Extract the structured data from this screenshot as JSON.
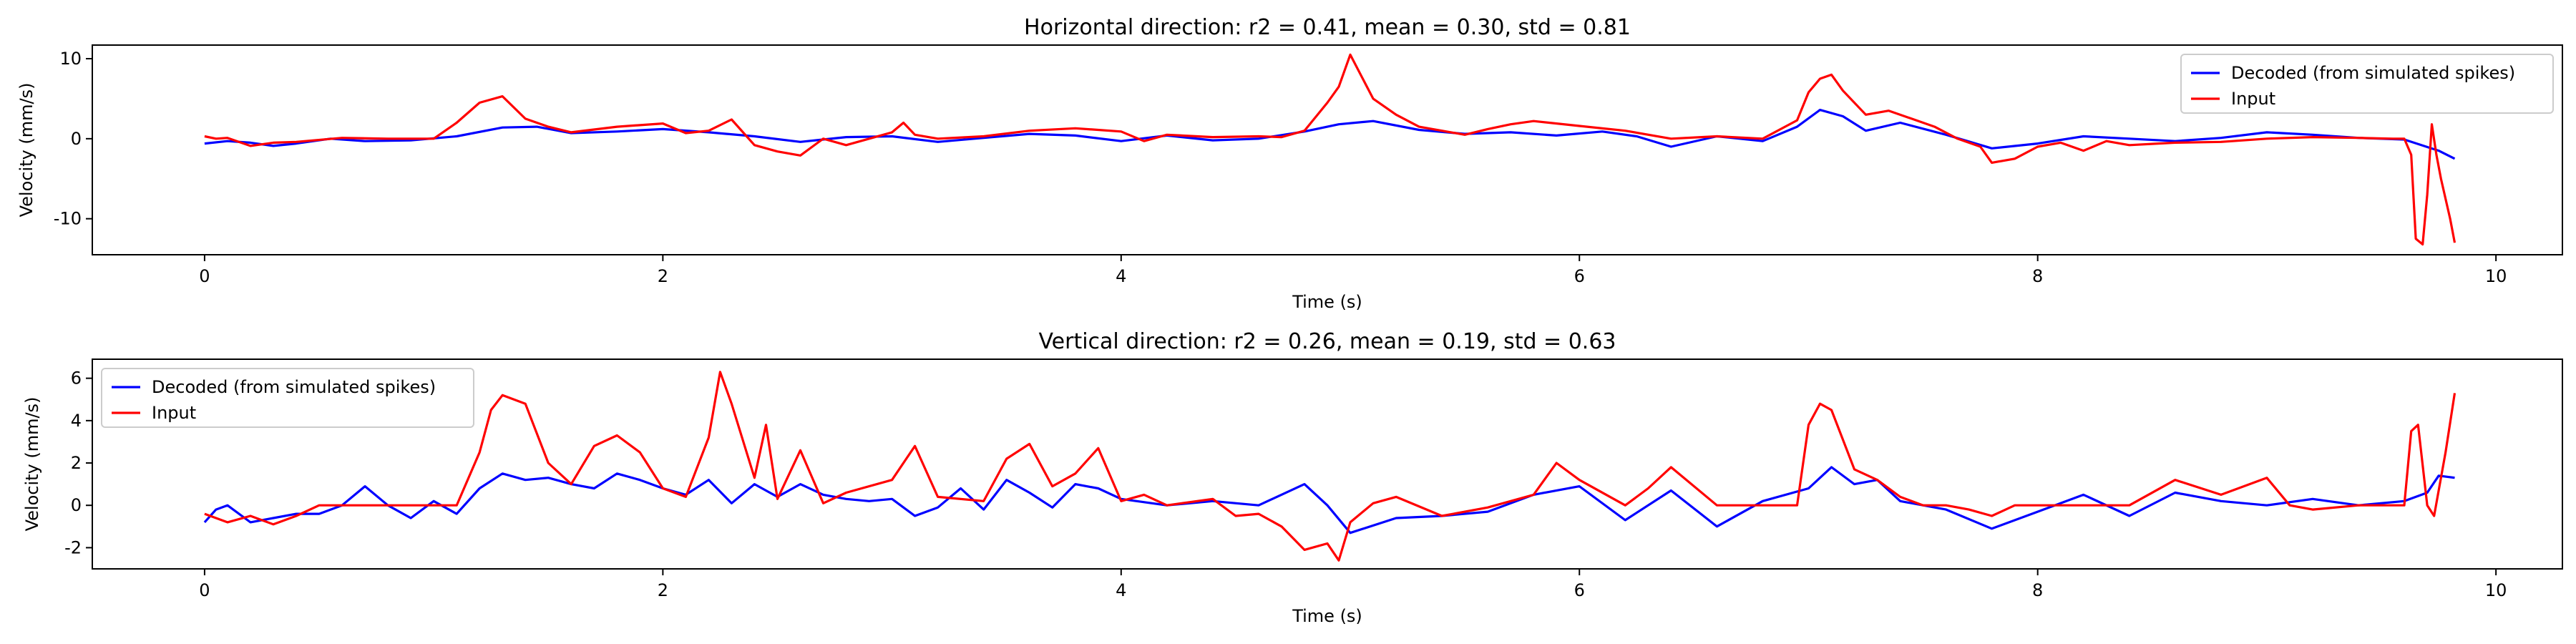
{
  "chart_data": [
    {
      "type": "line",
      "title": "Horizontal direction: r2 = 0.41, mean = 0.30, std = 0.81",
      "xlabel": "Time (s)",
      "ylabel": "Velocity (mm/s)",
      "xlim": [
        -0.49,
        10.29
      ],
      "ylim": [
        -14.5,
        11.7
      ],
      "xticks": [
        0,
        2,
        4,
        6,
        8,
        10
      ],
      "yticks": [
        -10,
        0,
        10
      ],
      "grid": false,
      "legend_position": "upper right",
      "series": [
        {
          "name": "Decoded (from simulated spikes)",
          "color": "#0000ff",
          "x": [
            0,
            0.1,
            0.2,
            0.3,
            0.4,
            0.55,
            0.7,
            0.9,
            1.1,
            1.3,
            1.45,
            1.6,
            1.8,
            2.0,
            2.2,
            2.4,
            2.6,
            2.8,
            3.0,
            3.2,
            3.4,
            3.6,
            3.8,
            4.0,
            4.2,
            4.4,
            4.6,
            4.8,
            4.95,
            5.1,
            5.3,
            5.5,
            5.7,
            5.9,
            6.1,
            6.25,
            6.4,
            6.6,
            6.8,
            6.95,
            7.05,
            7.15,
            7.25,
            7.4,
            7.6,
            7.8,
            8.0,
            8.2,
            8.4,
            8.6,
            8.8,
            9.0,
            9.2,
            9.4,
            9.6,
            9.75,
            9.82
          ],
          "values": [
            -0.6,
            -0.3,
            -0.5,
            -0.9,
            -0.6,
            0.0,
            -0.3,
            -0.2,
            0.3,
            1.4,
            1.5,
            0.7,
            0.9,
            1.2,
            0.8,
            0.3,
            -0.4,
            0.2,
            0.3,
            -0.4,
            0.1,
            0.6,
            0.4,
            -0.3,
            0.4,
            -0.2,
            0.0,
            0.9,
            1.8,
            2.2,
            1.1,
            0.6,
            0.8,
            0.4,
            0.9,
            0.3,
            -1.0,
            0.3,
            -0.3,
            1.5,
            3.6,
            2.8,
            1.0,
            2.0,
            0.5,
            -1.2,
            -0.6,
            0.3,
            0.0,
            -0.3,
            0.1,
            0.8,
            0.5,
            0.1,
            -0.1,
            -1.5,
            -2.5
          ]
        },
        {
          "name": "Input",
          "color": "#ff0000",
          "x": [
            0,
            0.05,
            0.1,
            0.2,
            0.3,
            0.4,
            0.6,
            0.8,
            1.0,
            1.1,
            1.2,
            1.3,
            1.4,
            1.5,
            1.6,
            1.8,
            2.0,
            2.1,
            2.2,
            2.3,
            2.4,
            2.5,
            2.6,
            2.7,
            2.8,
            3.0,
            3.05,
            3.1,
            3.2,
            3.4,
            3.6,
            3.8,
            4.0,
            4.1,
            4.2,
            4.4,
            4.6,
            4.7,
            4.8,
            4.9,
            4.95,
            5.0,
            5.1,
            5.2,
            5.3,
            5.5,
            5.6,
            5.7,
            5.8,
            6.0,
            6.2,
            6.4,
            6.6,
            6.8,
            6.95,
            7.0,
            7.05,
            7.1,
            7.15,
            7.25,
            7.35,
            7.45,
            7.55,
            7.65,
            7.75,
            7.8,
            7.9,
            8.0,
            8.1,
            8.2,
            8.3,
            8.4,
            8.6,
            8.8,
            9.0,
            9.2,
            9.4,
            9.55,
            9.6,
            9.63,
            9.65,
            9.68,
            9.7,
            9.72,
            9.74,
            9.76,
            9.8,
            9.82
          ],
          "values": [
            0.3,
            0.0,
            0.1,
            -0.9,
            -0.5,
            -0.4,
            0.1,
            0.0,
            0.0,
            2.0,
            4.5,
            5.3,
            2.5,
            1.5,
            0.8,
            1.5,
            1.9,
            0.7,
            1.0,
            2.4,
            -0.8,
            -1.6,
            -2.1,
            0.0,
            -0.8,
            0.8,
            2.0,
            0.5,
            0.0,
            0.3,
            1.0,
            1.3,
            0.9,
            -0.3,
            0.5,
            0.2,
            0.3,
            0.2,
            1.0,
            4.5,
            6.5,
            10.5,
            5.0,
            3.0,
            1.5,
            0.5,
            1.2,
            1.8,
            2.2,
            1.6,
            1.0,
            0.0,
            0.3,
            0.0,
            2.3,
            5.8,
            7.5,
            8.0,
            6.0,
            3.0,
            3.5,
            2.5,
            1.5,
            0.0,
            -1.0,
            -3.0,
            -2.5,
            -1.0,
            -0.5,
            -1.5,
            -0.3,
            -0.8,
            -0.5,
            -0.4,
            0.0,
            0.2,
            0.1,
            0.0,
            0.0,
            -2.0,
            -12.5,
            -13.2,
            -7.0,
            1.8,
            -2.0,
            -5.0,
            -10.0,
            -13.0
          ]
        }
      ]
    },
    {
      "type": "line",
      "title": "Vertical direction: r2 = 0.26, mean = 0.19, std = 0.63",
      "xlabel": "Time (s)",
      "ylabel": "Velocity (mm/s)",
      "xlim": [
        -0.49,
        10.29
      ],
      "ylim": [
        -3.0,
        6.9
      ],
      "xticks": [
        0,
        2,
        4,
        6,
        8,
        10
      ],
      "yticks": [
        -2,
        0,
        2,
        4,
        6
      ],
      "grid": false,
      "legend_position": "upper left",
      "series": [
        {
          "name": "Decoded (from simulated spikes)",
          "color": "#0000ff",
          "x": [
            0,
            0.05,
            0.1,
            0.2,
            0.3,
            0.4,
            0.5,
            0.6,
            0.7,
            0.8,
            0.9,
            1.0,
            1.1,
            1.2,
            1.3,
            1.4,
            1.5,
            1.6,
            1.7,
            1.8,
            1.9,
            2.0,
            2.1,
            2.2,
            2.3,
            2.4,
            2.5,
            2.6,
            2.7,
            2.8,
            2.9,
            3.0,
            3.1,
            3.2,
            3.3,
            3.4,
            3.5,
            3.6,
            3.7,
            3.8,
            3.9,
            4.0,
            4.2,
            4.4,
            4.6,
            4.8,
            4.9,
            5.0,
            5.2,
            5.4,
            5.6,
            5.8,
            6.0,
            6.2,
            6.4,
            6.6,
            6.8,
            7.0,
            7.1,
            7.2,
            7.3,
            7.4,
            7.6,
            7.8,
            8.0,
            8.2,
            8.4,
            8.6,
            8.8,
            9.0,
            9.2,
            9.4,
            9.6,
            9.7,
            9.75,
            9.82
          ],
          "values": [
            -0.8,
            -0.2,
            0.0,
            -0.8,
            -0.6,
            -0.4,
            -0.4,
            0.0,
            0.9,
            0.0,
            -0.6,
            0.2,
            -0.4,
            0.8,
            1.5,
            1.2,
            1.3,
            1.0,
            0.8,
            1.5,
            1.2,
            0.8,
            0.5,
            1.2,
            0.1,
            1.0,
            0.4,
            1.0,
            0.5,
            0.3,
            0.2,
            0.3,
            -0.5,
            -0.1,
            0.8,
            -0.2,
            1.2,
            0.6,
            -0.1,
            1.0,
            0.8,
            0.3,
            0.0,
            0.2,
            0.0,
            1.0,
            0.0,
            -1.3,
            -0.6,
            -0.5,
            -0.3,
            0.5,
            0.9,
            -0.7,
            0.7,
            -1.0,
            0.2,
            0.8,
            1.8,
            1.0,
            1.2,
            0.2,
            -0.2,
            -1.1,
            -0.3,
            0.5,
            -0.5,
            0.6,
            0.2,
            0.0,
            0.3,
            0.0,
            0.2,
            0.6,
            1.4,
            1.3
          ]
        },
        {
          "name": "Input",
          "color": "#ff0000",
          "x": [
            0,
            0.1,
            0.2,
            0.3,
            0.4,
            0.5,
            0.7,
            0.9,
            1.0,
            1.1,
            1.2,
            1.25,
            1.3,
            1.4,
            1.5,
            1.6,
            1.7,
            1.8,
            1.9,
            2.0,
            2.1,
            2.2,
            2.25,
            2.3,
            2.4,
            2.45,
            2.5,
            2.6,
            2.7,
            2.8,
            3.0,
            3.1,
            3.2,
            3.4,
            3.5,
            3.6,
            3.7,
            3.8,
            3.9,
            4.0,
            4.1,
            4.2,
            4.4,
            4.5,
            4.6,
            4.7,
            4.8,
            4.9,
            4.95,
            5.0,
            5.1,
            5.2,
            5.4,
            5.6,
            5.8,
            5.9,
            6.0,
            6.2,
            6.3,
            6.4,
            6.6,
            6.8,
            6.95,
            7.0,
            7.05,
            7.1,
            7.2,
            7.3,
            7.4,
            7.5,
            7.6,
            7.7,
            7.8,
            7.9,
            8.0,
            8.2,
            8.4,
            8.6,
            8.8,
            9.0,
            9.1,
            9.2,
            9.4,
            9.6,
            9.63,
            9.66,
            9.7,
            9.73,
            9.78,
            9.82
          ],
          "values": [
            -0.4,
            -0.8,
            -0.5,
            -0.9,
            -0.5,
            0.0,
            0.0,
            0.0,
            0.0,
            0.0,
            2.5,
            4.5,
            5.2,
            4.8,
            2.0,
            1.0,
            2.8,
            3.3,
            2.5,
            0.8,
            0.4,
            3.2,
            6.3,
            4.8,
            1.3,
            3.8,
            0.3,
            2.6,
            0.1,
            0.6,
            1.2,
            2.8,
            0.4,
            0.2,
            2.2,
            2.9,
            0.9,
            1.5,
            2.7,
            0.2,
            0.5,
            0.0,
            0.3,
            -0.5,
            -0.4,
            -1.0,
            -2.1,
            -1.8,
            -2.6,
            -0.8,
            0.1,
            0.4,
            -0.5,
            -0.1,
            0.5,
            2.0,
            1.2,
            0.0,
            0.8,
            1.8,
            0.0,
            0.0,
            0.0,
            3.8,
            4.8,
            4.5,
            1.7,
            1.2,
            0.4,
            0.0,
            0.0,
            -0.2,
            -0.5,
            0.0,
            0.0,
            0.0,
            0.0,
            1.2,
            0.5,
            1.3,
            0.0,
            -0.2,
            0.0,
            0.0,
            3.5,
            3.8,
            0.0,
            -0.5,
            2.5,
            5.3
          ]
        }
      ]
    }
  ]
}
